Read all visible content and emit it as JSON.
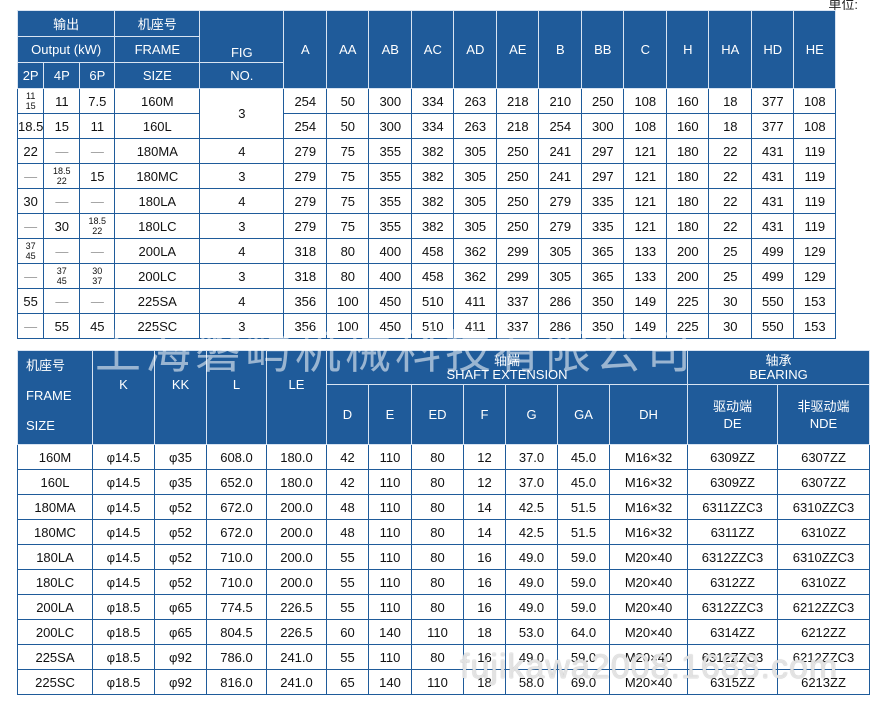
{
  "corner_text": "单位:",
  "table1": {
    "header": {
      "output_cn": "输出",
      "output_en": "Output (kW)",
      "poles": [
        "2P",
        "4P",
        "6P"
      ],
      "frame_cn": "机座号",
      "frame_en": "FRAME",
      "frame_size": "SIZE",
      "fig": "FIG",
      "fig_no": "NO.",
      "dims": [
        "A",
        "AA",
        "AB",
        "AC",
        "AD",
        "AE",
        "B",
        "BB",
        "C",
        "H",
        "HA",
        "HD",
        "HE"
      ]
    },
    "rows": [
      {
        "p2": [
          "11",
          "15"
        ],
        "p4": "11",
        "p6": "7.5",
        "frame": "160M",
        "fig": "3",
        "dims": [
          "254",
          "50",
          "300",
          "334",
          "263",
          "218",
          "210",
          "250",
          "108",
          "160",
          "18",
          "377",
          "108"
        ]
      },
      {
        "p2": "18.5",
        "p4": "15",
        "p6": "11",
        "frame": "160L",
        "fig": "",
        "dims": [
          "254",
          "50",
          "300",
          "334",
          "263",
          "218",
          "254",
          "300",
          "108",
          "160",
          "18",
          "377",
          "108"
        ]
      },
      {
        "p2": "22",
        "p4": "—",
        "p6": "—",
        "frame": "180MA",
        "fig": "4",
        "dims": [
          "279",
          "75",
          "355",
          "382",
          "305",
          "250",
          "241",
          "297",
          "121",
          "180",
          "22",
          "431",
          "119"
        ]
      },
      {
        "p2": "—",
        "p4": [
          "18.5",
          "22"
        ],
        "p6": "15",
        "frame": "180MC",
        "fig": "3",
        "dims": [
          "279",
          "75",
          "355",
          "382",
          "305",
          "250",
          "241",
          "297",
          "121",
          "180",
          "22",
          "431",
          "119"
        ]
      },
      {
        "p2": "30",
        "p4": "—",
        "p6": "—",
        "frame": "180LA",
        "fig": "4",
        "dims": [
          "279",
          "75",
          "355",
          "382",
          "305",
          "250",
          "279",
          "335",
          "121",
          "180",
          "22",
          "431",
          "119"
        ]
      },
      {
        "p2": "—",
        "p4": "30",
        "p6": [
          "18.5",
          "22"
        ],
        "frame": "180LC",
        "fig": "3",
        "dims": [
          "279",
          "75",
          "355",
          "382",
          "305",
          "250",
          "279",
          "335",
          "121",
          "180",
          "22",
          "431",
          "119"
        ]
      },
      {
        "p2": [
          "37",
          "45"
        ],
        "p4": "—",
        "p6": "—",
        "frame": "200LA",
        "fig": "4",
        "dims": [
          "318",
          "80",
          "400",
          "458",
          "362",
          "299",
          "305",
          "365",
          "133",
          "200",
          "25",
          "499",
          "129"
        ]
      },
      {
        "p2": "—",
        "p4": [
          "37",
          "45"
        ],
        "p6": [
          "30",
          "37"
        ],
        "frame": "200LC",
        "fig": "3",
        "dims": [
          "318",
          "80",
          "400",
          "458",
          "362",
          "299",
          "305",
          "365",
          "133",
          "200",
          "25",
          "499",
          "129"
        ]
      },
      {
        "p2": "55",
        "p4": "—",
        "p6": "—",
        "frame": "225SA",
        "fig": "4",
        "dims": [
          "356",
          "100",
          "450",
          "510",
          "411",
          "337",
          "286",
          "350",
          "149",
          "225",
          "30",
          "550",
          "153"
        ]
      },
      {
        "p2": "—",
        "p4": "55",
        "p6": "45",
        "frame": "225SC",
        "fig": "3",
        "dims": [
          "356",
          "100",
          "450",
          "510",
          "411",
          "337",
          "286",
          "350",
          "149",
          "225",
          "30",
          "550",
          "153"
        ]
      }
    ]
  },
  "table2": {
    "header": {
      "frame_cn": "机座号",
      "frame_en": "FRAME",
      "frame_size": "SIZE",
      "k": "K",
      "kk": "KK",
      "l": "L",
      "le": "LE",
      "shaft_cn": "轴端",
      "shaft_en": "SHAFT EXTENSION",
      "shaft_cols": [
        "D",
        "E",
        "ED",
        "F",
        "G",
        "GA",
        "DH"
      ],
      "bearing_cn": "轴承",
      "bearing_en": "BEARING",
      "de_cn": "驱动端",
      "de_en": "DE",
      "nde_cn": "非驱动端",
      "nde_en": "NDE"
    },
    "rows": [
      {
        "frame": "160M",
        "k": "φ14.5",
        "kk": "φ35",
        "l": "608.0",
        "le": "180.0",
        "d": "42",
        "e": "110",
        "ed": "80",
        "f": "12",
        "g": "37.0",
        "ga": "45.0",
        "dh": "M16×32",
        "de": "6309ZZ",
        "nde": "6307ZZ"
      },
      {
        "frame": "160L",
        "k": "φ14.5",
        "kk": "φ35",
        "l": "652.0",
        "le": "180.0",
        "d": "42",
        "e": "110",
        "ed": "80",
        "f": "12",
        "g": "37.0",
        "ga": "45.0",
        "dh": "M16×32",
        "de": "6309ZZ",
        "nde": "6307ZZ"
      },
      {
        "frame": "180MA",
        "k": "φ14.5",
        "kk": "φ52",
        "l": "672.0",
        "le": "200.0",
        "d": "48",
        "e": "110",
        "ed": "80",
        "f": "14",
        "g": "42.5",
        "ga": "51.5",
        "dh": "M16×32",
        "de": "6311ZZC3",
        "nde": "6310ZZC3"
      },
      {
        "frame": "180MC",
        "k": "φ14.5",
        "kk": "φ52",
        "l": "672.0",
        "le": "200.0",
        "d": "48",
        "e": "110",
        "ed": "80",
        "f": "14",
        "g": "42.5",
        "ga": "51.5",
        "dh": "M16×32",
        "de": "6311ZZ",
        "nde": "6310ZZ"
      },
      {
        "frame": "180LA",
        "k": "φ14.5",
        "kk": "φ52",
        "l": "710.0",
        "le": "200.0",
        "d": "55",
        "e": "110",
        "ed": "80",
        "f": "16",
        "g": "49.0",
        "ga": "59.0",
        "dh": "M20×40",
        "de": "6312ZZC3",
        "nde": "6310ZZC3"
      },
      {
        "frame": "180LC",
        "k": "φ14.5",
        "kk": "φ52",
        "l": "710.0",
        "le": "200.0",
        "d": "55",
        "e": "110",
        "ed": "80",
        "f": "16",
        "g": "49.0",
        "ga": "59.0",
        "dh": "M20×40",
        "de": "6312ZZ",
        "nde": "6310ZZ"
      },
      {
        "frame": "200LA",
        "k": "φ18.5",
        "kk": "φ65",
        "l": "774.5",
        "le": "226.5",
        "d": "55",
        "e": "110",
        "ed": "80",
        "f": "16",
        "g": "49.0",
        "ga": "59.0",
        "dh": "M20×40",
        "de": "6312ZZC3",
        "nde": "6212ZZC3"
      },
      {
        "frame": "200LC",
        "k": "φ18.5",
        "kk": "φ65",
        "l": "804.5",
        "le": "226.5",
        "d": "60",
        "e": "140",
        "ed": "110",
        "f": "18",
        "g": "53.0",
        "ga": "64.0",
        "dh": "M20×40",
        "de": "6314ZZ",
        "nde": "6212ZZ"
      },
      {
        "frame": "225SA",
        "k": "φ18.5",
        "kk": "φ92",
        "l": "786.0",
        "le": "241.0",
        "d": "55",
        "e": "110",
        "ed": "80",
        "f": "16",
        "g": "49.0",
        "ga": "59.0",
        "dh": "M20×40",
        "de": "6312ZZC3",
        "nde": "6212ZZC3"
      },
      {
        "frame": "225SC",
        "k": "φ18.5",
        "kk": "φ92",
        "l": "816.0",
        "le": "241.0",
        "d": "65",
        "e": "140",
        "ed": "110",
        "f": "18",
        "g": "58.0",
        "ga": "69.0",
        "dh": "M20×40",
        "de": "6315ZZ",
        "nde": "6213ZZ"
      }
    ]
  },
  "watermark_cn": "上海磐屿机械科技有限公司",
  "watermark_url": "fujikawa2008.1688.com",
  "colors": {
    "header_bg": "#1f5b9a",
    "border": "#1f5b9a"
  }
}
